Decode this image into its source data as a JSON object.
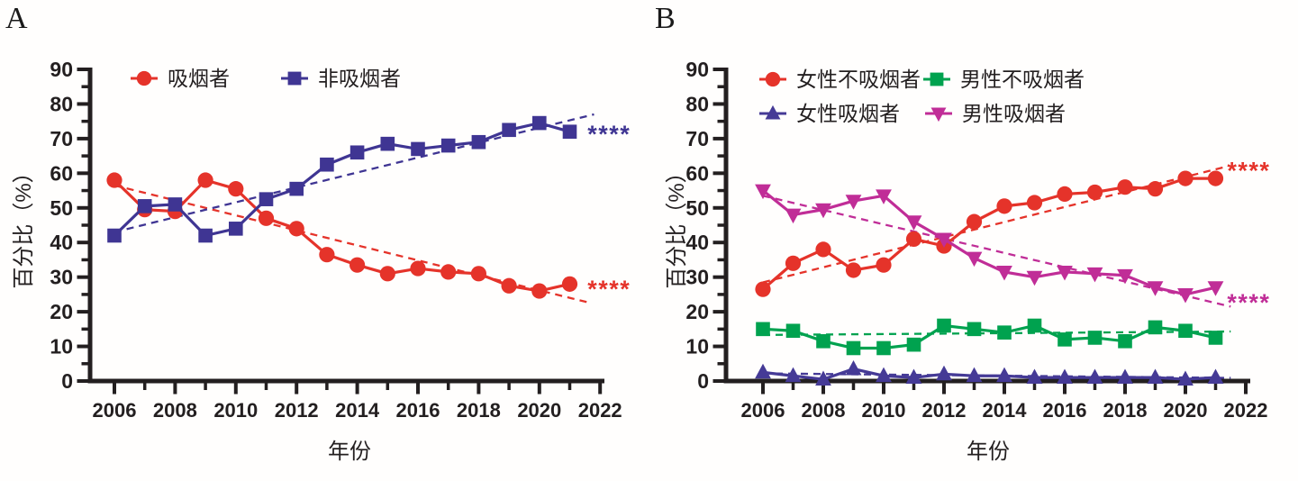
{
  "figure": {
    "background": "#fffefd",
    "axis_color": "#231f20"
  },
  "chart_data": [
    {
      "panel_label": "A",
      "type": "line",
      "title": "",
      "xlabel": "年份",
      "ylabel": "百分比（%）",
      "xlim": [
        2005.2,
        2022.6
      ],
      "ylim": [
        0,
        90
      ],
      "xticks": [
        2006,
        2008,
        2010,
        2012,
        2014,
        2016,
        2018,
        2020,
        2022
      ],
      "yticks": [
        0,
        10,
        20,
        30,
        40,
        50,
        60,
        70,
        80,
        90
      ],
      "grid": false,
      "legend_position": "top-inside",
      "x": [
        2006,
        2007,
        2008,
        2009,
        2010,
        2011,
        2012,
        2013,
        2014,
        2015,
        2016,
        2017,
        2018,
        2019,
        2020,
        2021
      ],
      "series": [
        {
          "name": "吸烟者",
          "color": "#E5332A",
          "marker": "circle",
          "values": [
            58,
            49.5,
            49,
            58,
            55.5,
            47,
            44,
            36.5,
            33.5,
            31,
            32.5,
            31.5,
            31,
            27.5,
            26,
            28
          ],
          "trend": {
            "x1": 2006,
            "y1": 56.5,
            "x2": 2021.7,
            "y2": 22.5
          },
          "annotation": {
            "text": "****",
            "x": 2022.3,
            "y": 26.3
          }
        },
        {
          "name": "非吸烟者",
          "color": "#3F3593",
          "marker": "square",
          "values": [
            42,
            50.5,
            51,
            42,
            44,
            52.5,
            55.5,
            62.5,
            66,
            68.5,
            67,
            68,
            69,
            72.5,
            74.5,
            72
          ],
          "trend": {
            "x1": 2006,
            "y1": 43,
            "x2": 2021.8,
            "y2": 77
          },
          "annotation": {
            "text": "****",
            "x": 2022.3,
            "y": 71
          }
        }
      ]
    },
    {
      "panel_label": "B",
      "type": "line",
      "title": "",
      "xlabel": "年份",
      "ylabel": "百分比（%）",
      "xlim": [
        2005.2,
        2022.6
      ],
      "ylim": [
        0,
        90
      ],
      "xticks": [
        2006,
        2008,
        2010,
        2012,
        2014,
        2016,
        2018,
        2020,
        2022
      ],
      "yticks": [
        0,
        10,
        20,
        30,
        40,
        50,
        60,
        70,
        80,
        90
      ],
      "grid": false,
      "legend_position": "top-inside-2x2",
      "x": [
        2006,
        2007,
        2008,
        2009,
        2010,
        2011,
        2012,
        2013,
        2014,
        2015,
        2016,
        2017,
        2018,
        2019,
        2020,
        2021
      ],
      "series": [
        {
          "name": "女性不吸烟者",
          "color": "#E5332A",
          "marker": "circle",
          "values": [
            26.5,
            34,
            38,
            32,
            33.5,
            41,
            39,
            46,
            50.5,
            51.5,
            54,
            54.5,
            56,
            55.5,
            58.5,
            58.5
          ],
          "trend": {
            "x1": 2006,
            "y1": 28.5,
            "x2": 2021.4,
            "y2": 62
          },
          "annotation": {
            "text": "****",
            "x": 2022.1,
            "y": 60.5
          }
        },
        {
          "name": "男性不吸烟者",
          "color": "#00A24F",
          "marker": "square",
          "values": [
            15,
            14.5,
            11.5,
            9.5,
            9.5,
            10.5,
            16,
            15,
            14,
            16,
            12,
            12.5,
            11.5,
            15.5,
            14.5,
            12.5
          ],
          "trend": {
            "x1": 2006,
            "y1": 13.3,
            "x2": 2021.5,
            "y2": 14.3
          },
          "annotation": null
        },
        {
          "name": "女性吸烟者",
          "color": "#453A96",
          "marker": "triangle-up",
          "values": [
            2.5,
            1.5,
            0.5,
            3.5,
            1.5,
            1,
            2,
            1.5,
            1.5,
            1,
            1,
            1,
            1,
            1,
            0.5,
            1
          ],
          "trend": {
            "x1": 2006,
            "y1": 2.2,
            "x2": 2021.5,
            "y2": 0.9
          },
          "annotation": null
        },
        {
          "name": "男性吸烟者",
          "color": "#C02D97",
          "marker": "triangle-down",
          "values": [
            55,
            48,
            49.5,
            52,
            53.5,
            46,
            41,
            35.5,
            31.5,
            30,
            31.5,
            31,
            30.5,
            27,
            25,
            27
          ],
          "trend": {
            "x1": 2006,
            "y1": 53.5,
            "x2": 2021.5,
            "y2": 21.5
          },
          "annotation": {
            "text": "****",
            "x": 2022.1,
            "y": 22.4
          }
        }
      ]
    }
  ]
}
